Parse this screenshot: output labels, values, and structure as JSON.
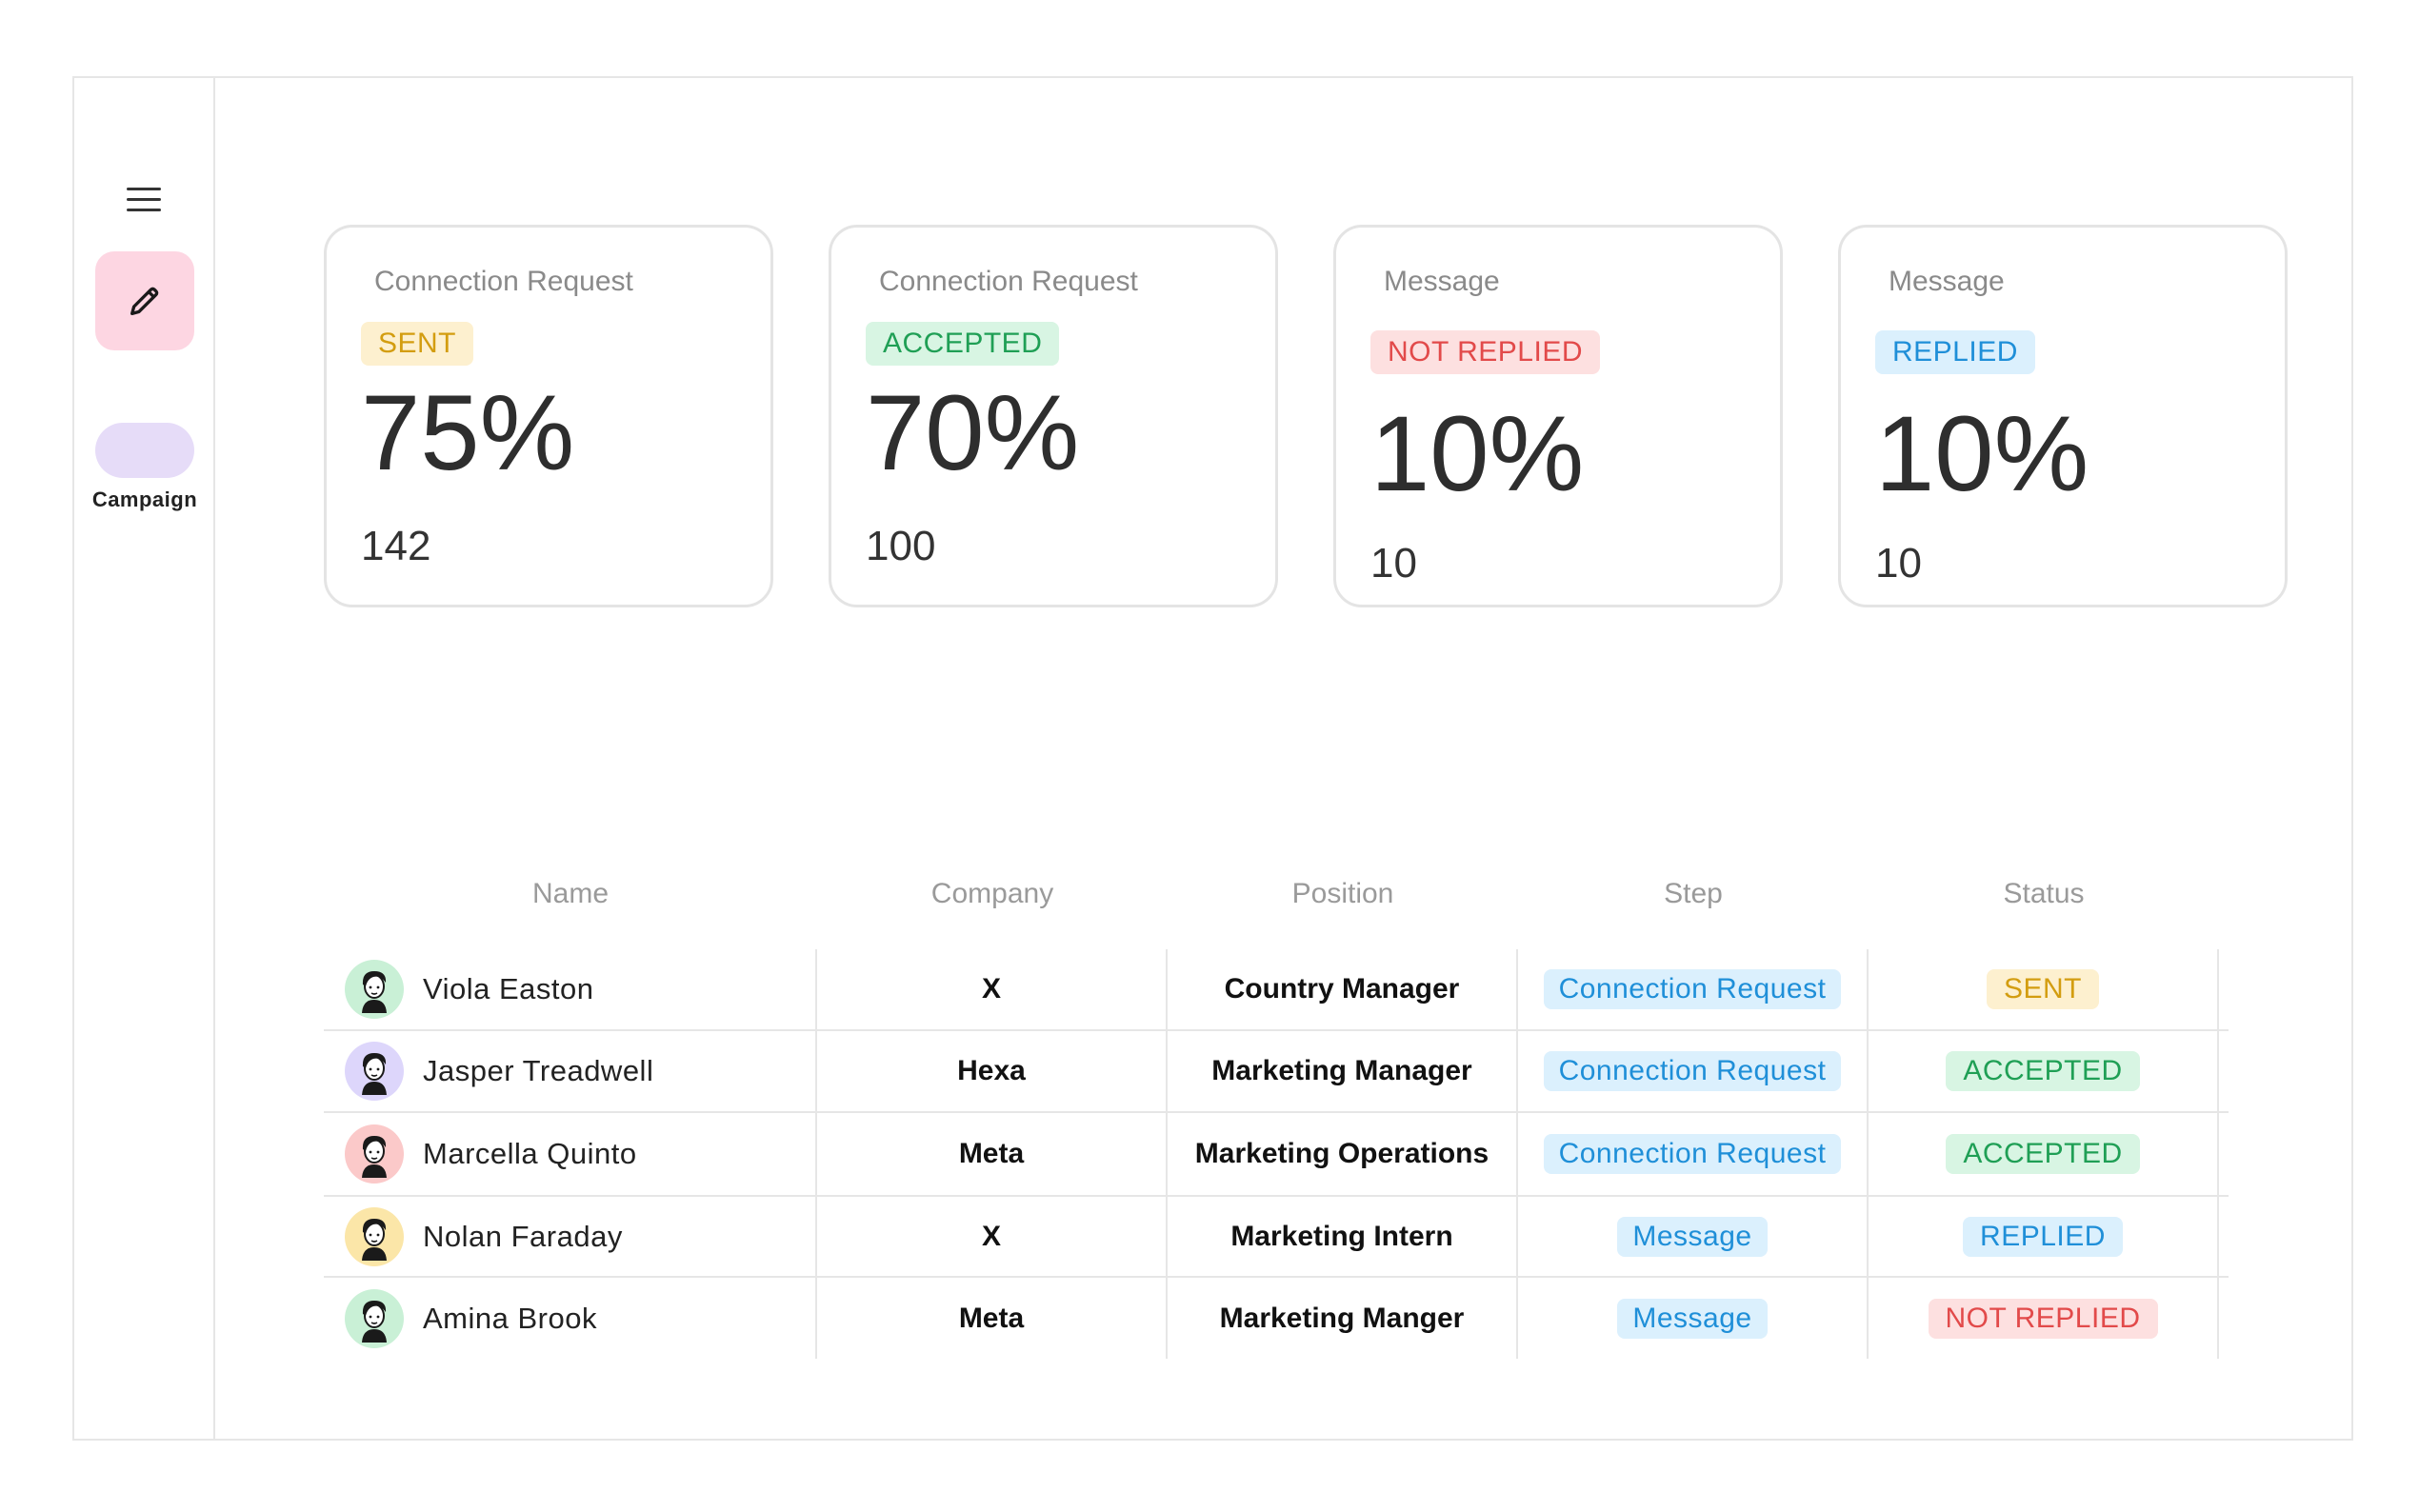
{
  "sidebar": {
    "menu_icon": "hamburger-menu-icon",
    "edit_icon": "pencil-icon",
    "campaign_label": "Campaign",
    "colors": {
      "edit_bg": "#fdd6e2",
      "campaign_bg": "#e6dcf8"
    }
  },
  "cards": [
    {
      "title": "Connection Request",
      "badge": "SENT",
      "percent": "75%",
      "count": "142"
    },
    {
      "title": "Connection Request",
      "badge": "ACCEPTED",
      "percent": "70%",
      "count": "100"
    },
    {
      "title": "Message",
      "badge": "NOT REPLIED",
      "percent": "10%",
      "count": "10"
    },
    {
      "title": "Message",
      "badge": "REPLIED",
      "percent": "10%",
      "count": "10"
    }
  ],
  "table": {
    "headers": [
      "Name",
      "Company",
      "Position",
      "Step",
      "Status"
    ],
    "rows": [
      {
        "name": "Viola Easton",
        "company": "X",
        "position": "Country Manager",
        "step": "Connection Request",
        "status": "SENT",
        "avatar_color": "#c9f0d6"
      },
      {
        "name": "Jasper Treadwell",
        "company": "Hexa",
        "position": "Marketing Manager",
        "step": "Connection Request",
        "status": "ACCEPTED",
        "avatar_color": "#ddd6fb"
      },
      {
        "name": "Marcella Quinto",
        "company": "Meta",
        "position": "Marketing Operations",
        "step": "Connection Request",
        "status": "ACCEPTED",
        "avatar_color": "#fbc9c9"
      },
      {
        "name": "Nolan Faraday",
        "company": "X",
        "position": "Marketing Intern",
        "step": "Message",
        "status": "REPLIED",
        "avatar_color": "#fbe6a8"
      },
      {
        "name": "Amina Brook",
        "company": "Meta",
        "position": "Marketing Manger",
        "step": "Message",
        "status": "NOT REPLIED",
        "avatar_color": "#c9f0d6"
      }
    ]
  },
  "status_colors": {
    "SENT": {
      "bg": "#fdf0cf",
      "fg": "#d39d10"
    },
    "ACCEPTED": {
      "bg": "#d8f5e3",
      "fg": "#1f9f55"
    },
    "NOT REPLIED": {
      "bg": "#fde0e0",
      "fg": "#e24a4a"
    },
    "REPLIED": {
      "bg": "#dbf0fd",
      "fg": "#1f8fd8"
    }
  }
}
